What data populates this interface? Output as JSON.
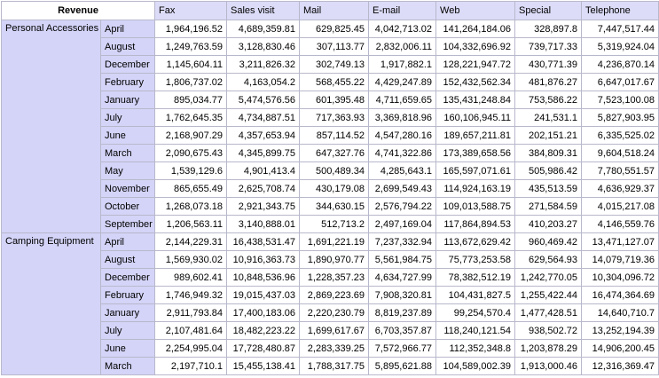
{
  "header": {
    "title": "Revenue",
    "columns": [
      "Fax",
      "Sales visit",
      "Mail",
      "E-mail",
      "Web",
      "Special",
      "Telephone"
    ]
  },
  "groups": [
    {
      "label": "Personal Accessories",
      "rows": [
        {
          "label": "April",
          "values": [
            "1,964,196.52",
            "4,689,359.81",
            "629,825.45",
            "4,042,713.02",
            "141,264,184.06",
            "328,897.8",
            "7,447,517.44"
          ]
        },
        {
          "label": "August",
          "values": [
            "1,249,763.59",
            "3,128,830.46",
            "307,113.77",
            "2,832,006.11",
            "104,332,696.92",
            "739,717.33",
            "5,319,924.04"
          ]
        },
        {
          "label": "December",
          "values": [
            "1,145,604.11",
            "3,211,826.32",
            "302,749.13",
            "1,917,882.1",
            "128,221,947.72",
            "430,771.39",
            "4,236,870.14"
          ]
        },
        {
          "label": "February",
          "values": [
            "1,806,737.02",
            "4,163,054.2",
            "568,455.22",
            "4,429,247.89",
            "152,432,562.34",
            "481,876.27",
            "6,647,017.67"
          ]
        },
        {
          "label": "January",
          "values": [
            "895,034.77",
            "5,474,576.56",
            "601,395.48",
            "4,711,659.65",
            "135,431,248.84",
            "753,586.22",
            "7,523,100.08"
          ]
        },
        {
          "label": "July",
          "values": [
            "1,762,645.35",
            "4,734,887.51",
            "717,363.93",
            "3,369,818.96",
            "160,106,945.11",
            "241,531.1",
            "5,827,903.95"
          ]
        },
        {
          "label": "June",
          "values": [
            "2,168,907.29",
            "4,357,653.94",
            "857,114.52",
            "4,547,280.16",
            "189,657,211.81",
            "202,151.21",
            "6,335,525.02"
          ]
        },
        {
          "label": "March",
          "values": [
            "2,090,675.43",
            "4,345,899.75",
            "647,327.76",
            "4,741,322.86",
            "173,389,658.56",
            "384,809.31",
            "9,604,518.24"
          ]
        },
        {
          "label": "May",
          "values": [
            "1,539,129.6",
            "4,901,413.4",
            "500,489.34",
            "4,285,643.1",
            "165,597,071.61",
            "505,986.42",
            "7,780,551.57"
          ]
        },
        {
          "label": "November",
          "values": [
            "865,655.49",
            "2,625,708.74",
            "430,179.08",
            "2,699,549.43",
            "114,924,163.19",
            "435,513.59",
            "4,636,929.37"
          ]
        },
        {
          "label": "October",
          "values": [
            "1,268,073.18",
            "2,921,343.75",
            "344,630.15",
            "2,576,794.22",
            "109,013,588.75",
            "271,584.59",
            "4,015,217.08"
          ]
        },
        {
          "label": "September",
          "values": [
            "1,206,563.11",
            "3,140,888.01",
            "512,713.2",
            "2,497,169.04",
            "117,864,894.53",
            "410,203.27",
            "4,146,559.76"
          ]
        }
      ]
    },
    {
      "label": "Camping Equipment",
      "rows": [
        {
          "label": "April",
          "values": [
            "2,144,229.31",
            "16,438,531.47",
            "1,691,221.19",
            "7,237,332.94",
            "113,672,629.42",
            "960,469.42",
            "13,471,127.07"
          ]
        },
        {
          "label": "August",
          "values": [
            "1,569,930.02",
            "10,916,363.73",
            "1,890,970.77",
            "5,561,984.75",
            "75,773,253.58",
            "629,564.93",
            "14,079,719.36"
          ]
        },
        {
          "label": "December",
          "values": [
            "989,602.41",
            "10,848,536.96",
            "1,228,357.23",
            "4,634,727.99",
            "78,382,512.19",
            "1,242,770.05",
            "10,304,096.72"
          ]
        },
        {
          "label": "February",
          "values": [
            "1,746,949.32",
            "19,015,437.03",
            "2,869,223.69",
            "7,908,320.81",
            "104,431,827.5",
            "1,255,422.44",
            "16,474,364.69"
          ]
        },
        {
          "label": "January",
          "values": [
            "2,911,793.84",
            "17,400,183.06",
            "2,220,230.79",
            "8,819,237.89",
            "99,254,570.4",
            "1,477,428.51",
            "14,640,710.7"
          ]
        },
        {
          "label": "July",
          "values": [
            "2,107,481.64",
            "18,482,223.22",
            "1,699,617.67",
            "6,703,357.87",
            "118,240,121.54",
            "938,502.72",
            "13,252,194.39"
          ]
        },
        {
          "label": "June",
          "values": [
            "2,254,995.04",
            "17,728,480.87",
            "2,283,339.25",
            "7,572,966.77",
            "112,352,348.8",
            "1,203,878.29",
            "14,906,200.45"
          ]
        },
        {
          "label": "March",
          "values": [
            "2,197,710.1",
            "15,455,138.41",
            "1,788,317.75",
            "5,895,621.88",
            "104,589,002.39",
            "1,913,000.46",
            "12,316,369.47"
          ]
        }
      ]
    }
  ]
}
